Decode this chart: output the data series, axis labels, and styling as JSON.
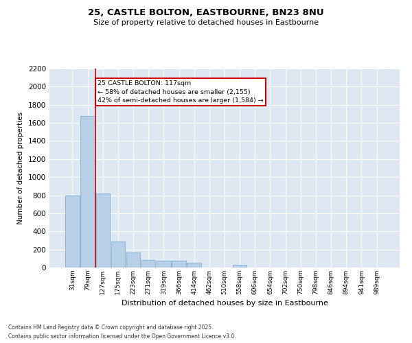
{
  "title_line1": "25, CASTLE BOLTON, EASTBOURNE, BN23 8NU",
  "title_line2": "Size of property relative to detached houses in Eastbourne",
  "xlabel": "Distribution of detached houses by size in Eastbourne",
  "ylabel": "Number of detached properties",
  "categories": [
    "31sqm",
    "79sqm",
    "127sqm",
    "175sqm",
    "223sqm",
    "271sqm",
    "319sqm",
    "366sqm",
    "414sqm",
    "462sqm",
    "510sqm",
    "558sqm",
    "606sqm",
    "654sqm",
    "702sqm",
    "750sqm",
    "798sqm",
    "846sqm",
    "894sqm",
    "941sqm",
    "989sqm"
  ],
  "values": [
    800,
    1680,
    820,
    290,
    170,
    80,
    75,
    75,
    55,
    0,
    0,
    30,
    0,
    0,
    0,
    0,
    0,
    0,
    0,
    0,
    0
  ],
  "bar_color": "#b8cfe8",
  "bar_edge_color": "#7aafd4",
  "marker_line_color": "#cc0000",
  "ylim": [
    0,
    2200
  ],
  "yticks": [
    0,
    200,
    400,
    600,
    800,
    1000,
    1200,
    1400,
    1600,
    1800,
    2000,
    2200
  ],
  "annotation_text": "25 CASTLE BOLTON: 117sqm\n← 58% of detached houses are smaller (2,155)\n42% of semi-detached houses are larger (1,584) →",
  "annotation_box_color": "#cc0000",
  "bg_color": "#dde8f3",
  "footer_line1": "Contains HM Land Registry data © Crown copyright and database right 2025.",
  "footer_line2": "Contains public sector information licensed under the Open Government Licence v3.0."
}
